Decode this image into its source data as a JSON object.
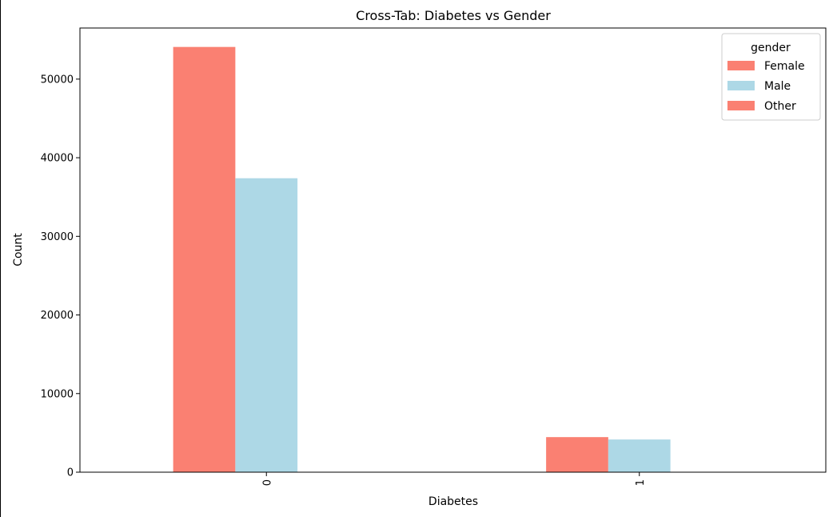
{
  "chart_data": {
    "type": "bar",
    "title": "Cross-Tab: Diabetes vs Gender",
    "xlabel": "Diabetes",
    "ylabel": "Count",
    "categories": [
      "0",
      "1"
    ],
    "series": [
      {
        "name": "Female",
        "values": [
          54091,
          4461
        ],
        "color": "#fa8072"
      },
      {
        "name": "Male",
        "values": [
          37391,
          4161
        ],
        "color": "#add8e6"
      },
      {
        "name": "Other",
        "values": [
          18,
          0
        ],
        "color": "#fa8072"
      }
    ],
    "ylim": [
      0,
      56500
    ],
    "yticks": [
      0,
      10000,
      20000,
      30000,
      40000,
      50000
    ],
    "legend": {
      "title": "gender",
      "placement": "top-right"
    },
    "grid": false
  }
}
